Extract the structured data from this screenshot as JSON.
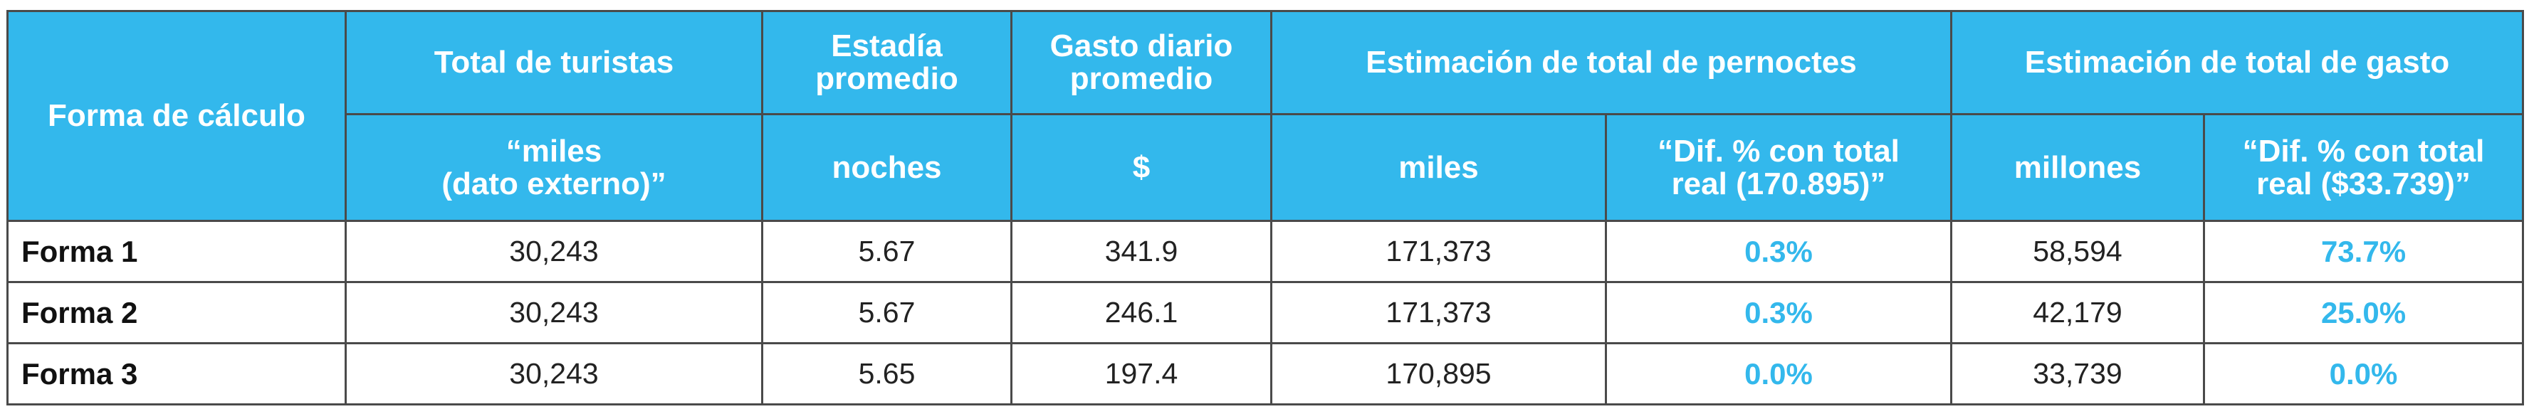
{
  "colors": {
    "header_bg": "#33b8ec",
    "header_text": "#ffffff",
    "pct_text": "#33b8ec",
    "border": "#4a4a4a"
  },
  "header": {
    "forma": "Forma de cálculo",
    "total_turistas": "Total de turistas",
    "estadia": "Estadía\npromedio",
    "gasto_diario": "Gasto diario\npromedio",
    "est_pernoctes": "Estimación de total de pernoctes",
    "est_gasto": "Estimación de total de gasto"
  },
  "subheader": {
    "turistas_unit": "“miles\n(dato externo)”",
    "estadia_unit": "noches",
    "gasto_unit": "$",
    "pernoctes_unit": "miles",
    "pernoctes_dif": "“Dif. % con total\nreal (170.895)”",
    "gasto_unit2": "millones",
    "gasto_dif": "“Dif. % con total\nreal ($33.739)”"
  },
  "rows": [
    {
      "label": "Forma 1",
      "turistas": "30,243",
      "estadia": "5.67",
      "gasto": "341.9",
      "pernoctes": "171,373",
      "pernoctes_dif": "0.3%",
      "total_gasto": "58,594",
      "gasto_dif": "73.7%"
    },
    {
      "label": "Forma 2",
      "turistas": "30,243",
      "estadia": "5.67",
      "gasto": "246.1",
      "pernoctes": "171,373",
      "pernoctes_dif": "0.3%",
      "total_gasto": "42,179",
      "gasto_dif": "25.0%"
    },
    {
      "label": "Forma 3",
      "turistas": "30,243",
      "estadia": "5.65",
      "gasto": "197.4",
      "pernoctes": "170,895",
      "pernoctes_dif": "0.0%",
      "total_gasto": "33,739",
      "gasto_dif": "0.0%"
    }
  ]
}
